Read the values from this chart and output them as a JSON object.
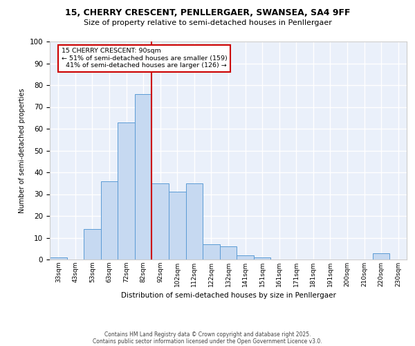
{
  "title1": "15, CHERRY CRESCENT, PENLLERGAER, SWANSEA, SA4 9FF",
  "title2": "Size of property relative to semi-detached houses in Penllergaer",
  "xlabel": "Distribution of semi-detached houses by size in Penllergaer",
  "ylabel": "Number of semi-detached properties",
  "categories": [
    "33sqm",
    "43sqm",
    "53sqm",
    "63sqm",
    "72sqm",
    "82sqm",
    "92sqm",
    "102sqm",
    "112sqm",
    "122sqm",
    "132sqm",
    "141sqm",
    "151sqm",
    "161sqm",
    "171sqm",
    "181sqm",
    "191sqm",
    "200sqm",
    "210sqm",
    "220sqm",
    "230sqm"
  ],
  "values": [
    1,
    0,
    14,
    36,
    63,
    76,
    35,
    31,
    35,
    7,
    6,
    2,
    1,
    0,
    0,
    0,
    0,
    0,
    0,
    3,
    0
  ],
  "bar_color": "#c6d9f1",
  "bar_edge_color": "#5b9bd5",
  "vline_x_index": 6,
  "annotation_title": "15 CHERRY CRESCENT: 90sqm",
  "annotation_line1": "← 51% of semi-detached houses are smaller (159)",
  "annotation_line2": "  41% of semi-detached houses are larger (126) →",
  "annotation_box_color": "#ffffff",
  "annotation_box_edge": "#cc0000",
  "vline_color": "#cc0000",
  "ylim": [
    0,
    100
  ],
  "yticks": [
    0,
    10,
    20,
    30,
    40,
    50,
    60,
    70,
    80,
    90,
    100
  ],
  "footnote1": "Contains HM Land Registry data © Crown copyright and database right 2025.",
  "footnote2": "Contains public sector information licensed under the Open Government Licence v3.0.",
  "background_color": "#eaf0fa",
  "grid_color": "#ffffff",
  "fig_bg": "#ffffff"
}
